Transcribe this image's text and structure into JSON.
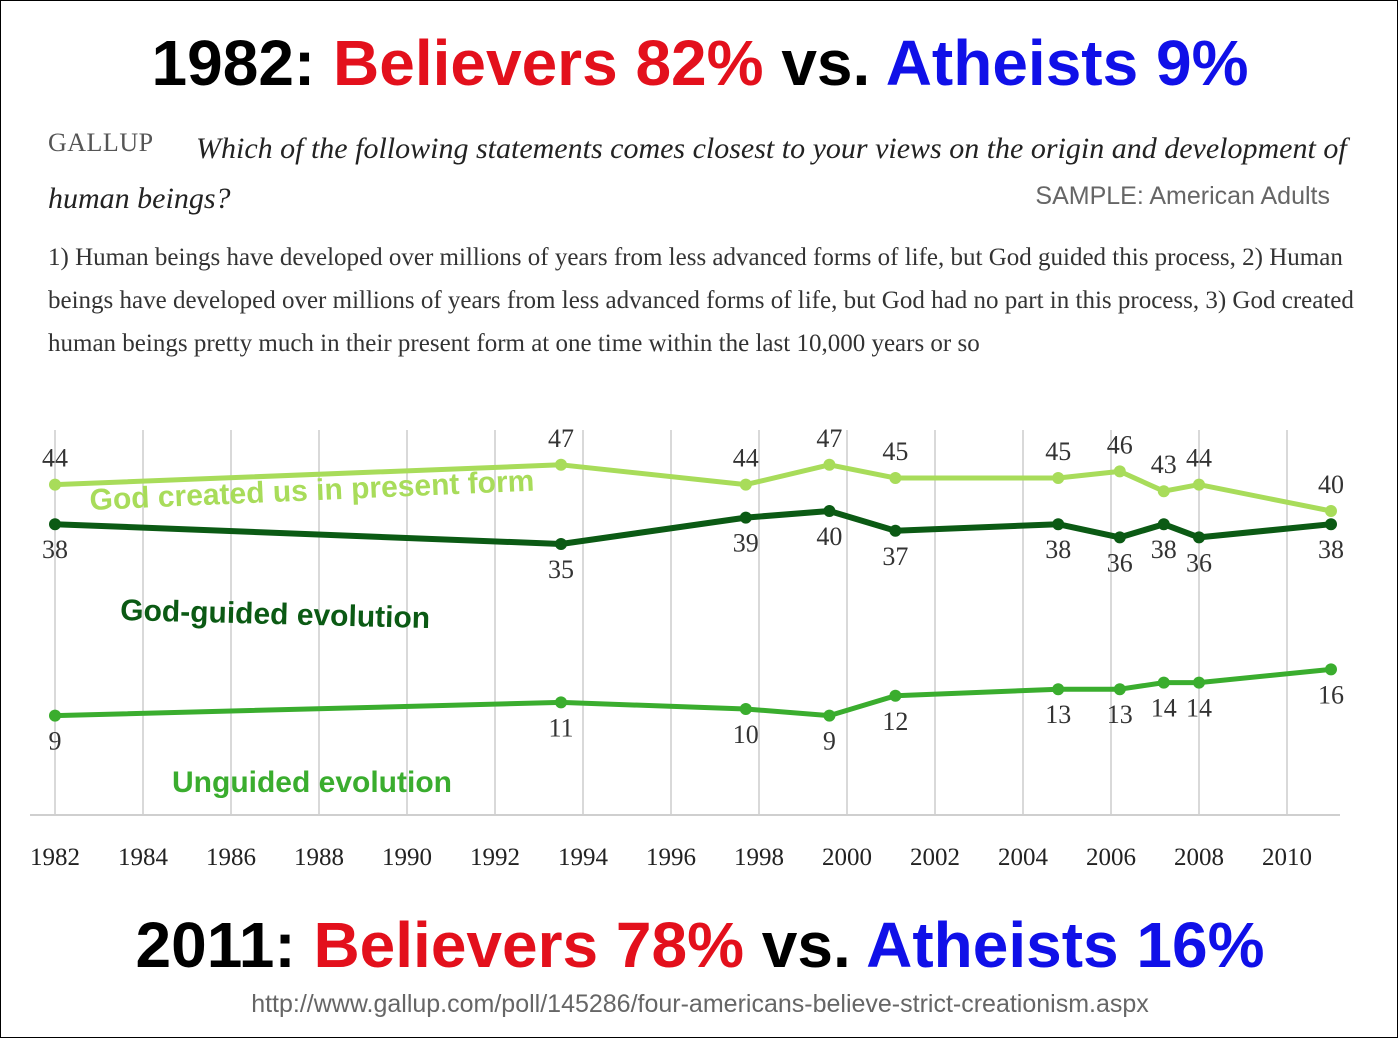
{
  "headline_top": {
    "year": "1982:",
    "believers": "Believers 82%",
    "vs": "vs.",
    "atheists": "Atheists 9%"
  },
  "headline_bottom": {
    "year": "2011:",
    "believers": "Believers 78%",
    "vs": "vs.",
    "atheists": "Atheists 16%"
  },
  "gallup_logo": "GALLUP",
  "question": "Which of the following statements comes closest to your views on the origin and development of human beings?",
  "sample": "SAMPLE: American Adults",
  "options_text": "1) Human beings have developed over millions of years from less advanced forms of life, but God guided this process, 2) Human beings have developed over millions of years from less advanced forms of life, but God had no part in this process, 3) God created human beings pretty much in their present form at one time within the last 10,000 years or so",
  "source_url": "http://www.gallup.com/poll/145286/four-americans-believe-strict-creationism.aspx",
  "colors": {
    "red": "#e3101c",
    "blue": "#1010e8",
    "light_green": "#a8dc5a",
    "dark_green": "#0b5a14",
    "mid_green": "#3aad2e"
  },
  "chart_data": {
    "type": "line",
    "x_ticks": [
      "1982",
      "1984",
      "1986",
      "1988",
      "1990",
      "1992",
      "1994",
      "1996",
      "1998",
      "2000",
      "2002",
      "2004",
      "2006",
      "2008",
      "2010"
    ],
    "xlim": [
      1982,
      2011
    ],
    "grid": true,
    "series": [
      {
        "name": "God created us in present form",
        "color": "#a8dc5a",
        "x": [
          1982,
          1993.5,
          1997.7,
          1999.6,
          2001.1,
          2004.8,
          2006.2,
          2007.2,
          2008,
          2011
        ],
        "values": [
          44,
          47,
          44,
          47,
          45,
          45,
          46,
          43,
          44,
          40
        ]
      },
      {
        "name": "God-guided evolution",
        "color": "#0b5a14",
        "x": [
          1982,
          1993.5,
          1997.7,
          1999.6,
          2001.1,
          2004.8,
          2006.2,
          2007.2,
          2008,
          2011
        ],
        "values": [
          38,
          35,
          39,
          40,
          37,
          38,
          36,
          38,
          36,
          38
        ]
      },
      {
        "name": "Unguided evolution",
        "color": "#3aad2e",
        "x": [
          1982,
          1993.5,
          1997.7,
          1999.6,
          2001.1,
          2004.8,
          2006.2,
          2007.2,
          2008,
          2011
        ],
        "values": [
          9,
          11,
          10,
          9,
          12,
          13,
          13,
          14,
          14,
          16
        ]
      }
    ]
  }
}
